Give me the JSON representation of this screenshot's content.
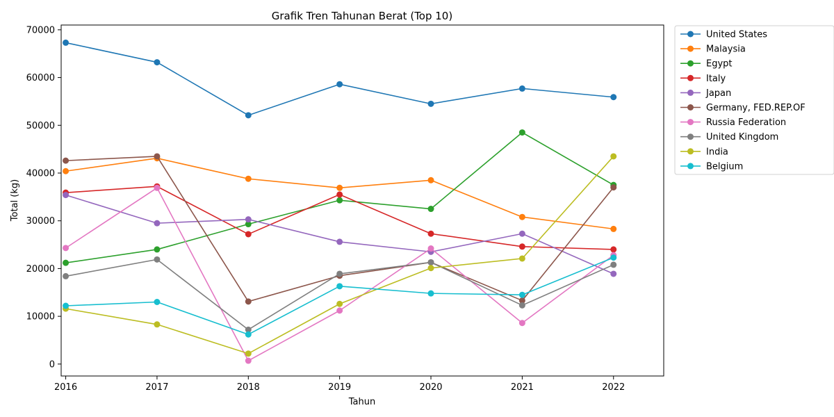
{
  "chart_data": {
    "type": "line",
    "title": "Grafik Tren Tahunan Berat (Top 10)",
    "xlabel": "Tahun",
    "ylabel": "Total (kg)",
    "x": [
      2016,
      2017,
      2018,
      2019,
      2020,
      2021,
      2022
    ],
    "xlim": [
      2015.95,
      2022.55
    ],
    "ylim": [
      -2500,
      71000
    ],
    "yticks": [
      0,
      10000,
      20000,
      30000,
      40000,
      50000,
      60000,
      70000
    ],
    "grid": false,
    "legend_position": "outside-top-right",
    "series": [
      {
        "name": "United States",
        "color": "#1f77b4",
        "values": [
          67300,
          63200,
          52100,
          58600,
          54500,
          57700,
          55900
        ]
      },
      {
        "name": "Malaysia",
        "color": "#ff7f0e",
        "values": [
          40400,
          43100,
          38800,
          36900,
          38500,
          30800,
          28300
        ]
      },
      {
        "name": "Egypt",
        "color": "#2ca02c",
        "values": [
          21200,
          24000,
          29300,
          34300,
          32500,
          48500,
          37500
        ]
      },
      {
        "name": "Italy",
        "color": "#d62728",
        "values": [
          35900,
          37200,
          27200,
          35500,
          27300,
          24600,
          24000
        ]
      },
      {
        "name": "Japan",
        "color": "#9467bd",
        "values": [
          35400,
          29500,
          30300,
          25600,
          23500,
          27300,
          18900
        ]
      },
      {
        "name": "Germany, FED.REP.OF",
        "color": "#8c564b",
        "values": [
          42600,
          43500,
          13100,
          18500,
          21300,
          13300,
          37000
        ]
      },
      {
        "name": "Russia Federation",
        "color": "#e377c2",
        "values": [
          24300,
          36900,
          700,
          11200,
          24200,
          8600,
          22800
        ]
      },
      {
        "name": "United Kingdom",
        "color": "#7f7f7f",
        "values": [
          18400,
          21900,
          7200,
          18900,
          21300,
          12300,
          20800
        ]
      },
      {
        "name": "India",
        "color": "#bcbd22",
        "values": [
          11600,
          8300,
          2200,
          12600,
          20100,
          22100,
          43500
        ]
      },
      {
        "name": "Belgium",
        "color": "#17becf",
        "values": [
          12200,
          13000,
          6200,
          16300,
          14800,
          14500,
          22300
        ]
      }
    ]
  }
}
